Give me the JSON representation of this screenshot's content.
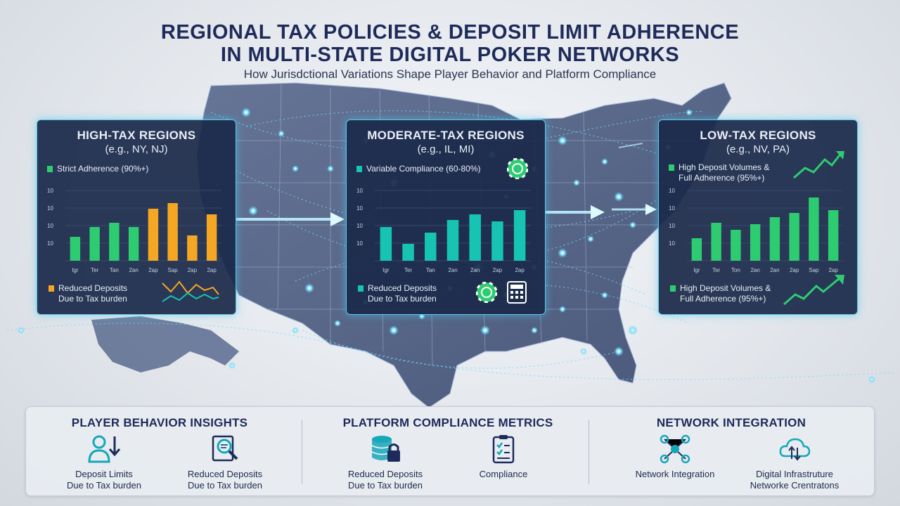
{
  "header": {
    "title_line1": "REGIONAL TAX POLICIES & DEPOSIT LIMIT ADHERENCE",
    "title_line2": "IN MULTI-STATE DIGITAL POKER NETWORKS",
    "subtitle": "How Jurisdctional Variations Shape Player Behavior and Platform Compliance"
  },
  "panels": [
    {
      "title": "HIGH-TAX REGIONS",
      "subtitle": "(e.g., NY, NJ)",
      "legend_top": "Strict Adherence (90%+)",
      "legend_bottom_line1": "Reduced Deposits",
      "legend_bottom_line2": "Due to Tax burden"
    },
    {
      "title": "MODERATE-TAX REGIONS",
      "subtitle": "(e.g., IL, MI)",
      "legend_top": "Variable Compliance (60-80%)",
      "legend_bottom_line1": "Reduced Deposits",
      "legend_bottom_line2": "Due to Tax burden"
    },
    {
      "title": "LOW-TAX REGIONS",
      "subtitle": "(e.g., NV, PA)",
      "legend_top_line1": "High Deposit Volumes &",
      "legend_top_line2": "Full Adherence (95%+)",
      "legend_bottom_line1": "High Deposit Volumes &",
      "legend_bottom_line2": "Full Adherence (95%+)"
    }
  ],
  "chart_data": [
    {
      "type": "bar",
      "categories": [
        "Igr",
        "Ter",
        "Tan",
        "2an",
        "2ap",
        "Sap",
        "2ap",
        "2ap"
      ],
      "y_tick_labels": [
        "10",
        "10",
        "10",
        "10",
        "10"
      ],
      "values": [
        17,
        24,
        27,
        24,
        37,
        41,
        18,
        33
      ],
      "colors": [
        "#2ecc71",
        "#2ecc71",
        "#2ecc71",
        "#2ecc71",
        "#f5a623",
        "#f5a623",
        "#f5a623",
        "#f5a623"
      ],
      "ylim": [
        0,
        50
      ]
    },
    {
      "type": "bar",
      "categories": [
        "Igr",
        "Ter",
        "Tan",
        "2an",
        "2an",
        "2ap",
        "2ap"
      ],
      "y_tick_labels": [
        "10",
        "10",
        "10",
        "10",
        "10"
      ],
      "values": [
        24,
        12,
        20,
        29,
        33,
        28,
        36
      ],
      "colors": [
        "#17c3b2",
        "#17c3b2",
        "#17c3b2",
        "#17c3b2",
        "#17c3b2",
        "#17c3b2",
        "#17c3b2"
      ],
      "ylim": [
        0,
        50
      ]
    },
    {
      "type": "bar",
      "categories": [
        "Igr",
        "Ter",
        "Ton",
        "2an",
        "2an",
        "2ap",
        "Sap",
        "2ap"
      ],
      "y_tick_labels": [
        "10",
        "10",
        "10",
        "10",
        "10"
      ],
      "values": [
        16,
        27,
        22,
        26,
        31,
        34,
        45,
        36
      ],
      "colors": [
        "#2ecc71",
        "#2ecc71",
        "#2ecc71",
        "#2ecc71",
        "#2ecc71",
        "#2ecc71",
        "#2ecc71",
        "#2ecc71"
      ],
      "ylim": [
        0,
        50
      ]
    }
  ],
  "bottom": {
    "sections": [
      {
        "title": "PLAYER BEHAVIOR INSIGHTS",
        "items": [
          {
            "icon": "user-download-icon",
            "line1": "Deposit Limits",
            "line2": "Due to Tax burden"
          },
          {
            "icon": "search-document-icon",
            "line1": "Reduced Deposits",
            "line2": "Due to Tax burden"
          }
        ]
      },
      {
        "title": "PLATFORM COMPLIANCE METRICS",
        "items": [
          {
            "icon": "database-lock-icon",
            "line1": "Reduced Deposits",
            "line2": "Due to Tax burden"
          },
          {
            "icon": "checklist-icon",
            "line1": "Compliance",
            "line2": ""
          }
        ]
      },
      {
        "title": "NETWORK INTEGRATION",
        "items": [
          {
            "icon": "network-nodes-icon",
            "line1": "Network Integration",
            "line2": ""
          },
          {
            "icon": "cloud-sync-icon",
            "line1": "Digital Infrastruture",
            "line2": "Networke Crentratons"
          }
        ]
      }
    ]
  },
  "colors": {
    "navy": "#1e2b5a",
    "panel_bg": "#1b2a4a",
    "glow": "#46c8f0",
    "green": "#2ecc71",
    "orange": "#f5a623",
    "teal": "#17c3b2"
  }
}
